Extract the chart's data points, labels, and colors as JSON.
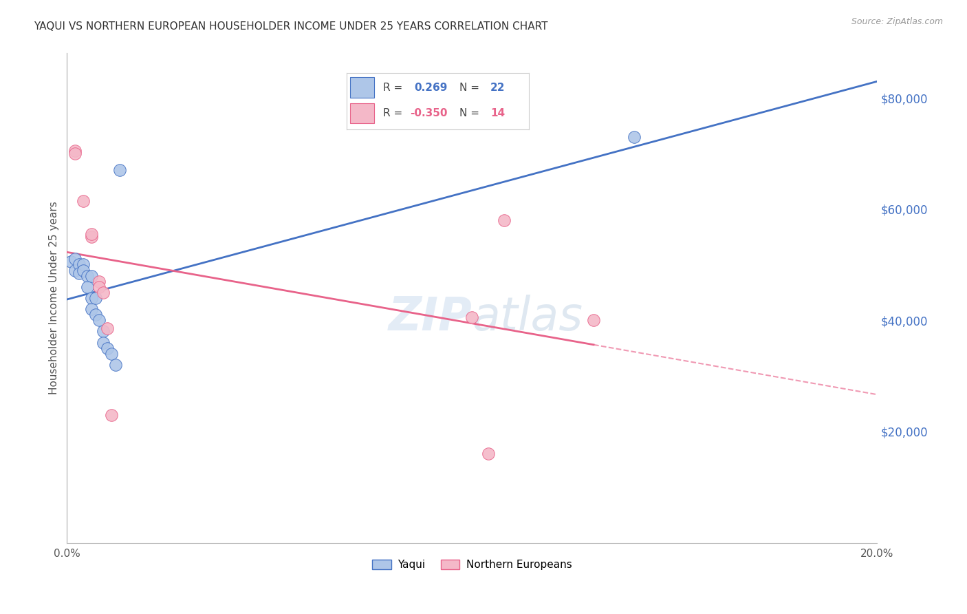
{
  "title": "YAQUI VS NORTHERN EUROPEAN HOUSEHOLDER INCOME UNDER 25 YEARS CORRELATION CHART",
  "source": "Source: ZipAtlas.com",
  "ylabel": "Householder Income Under 25 years",
  "y_tick_labels": [
    "$80,000",
    "$60,000",
    "$40,000",
    "$20,000"
  ],
  "y_tick_values": [
    80000,
    60000,
    40000,
    20000
  ],
  "ylim": [
    0,
    88000
  ],
  "xlim": [
    0.0,
    0.2
  ],
  "watermark_zip": "ZIP",
  "watermark_atlas": "atlas",
  "yaqui_color": "#aec6e8",
  "yaqui_line_color": "#4472c4",
  "ne_color": "#f4b8c8",
  "ne_line_color": "#e8638a",
  "yaqui_points": [
    [
      0.001,
      50500
    ],
    [
      0.002,
      51000
    ],
    [
      0.002,
      49000
    ],
    [
      0.003,
      50000
    ],
    [
      0.003,
      48500
    ],
    [
      0.004,
      50000
    ],
    [
      0.004,
      49000
    ],
    [
      0.005,
      48000
    ],
    [
      0.005,
      46000
    ],
    [
      0.006,
      48000
    ],
    [
      0.006,
      44000
    ],
    [
      0.006,
      42000
    ],
    [
      0.007,
      44000
    ],
    [
      0.007,
      41000
    ],
    [
      0.008,
      40000
    ],
    [
      0.009,
      38000
    ],
    [
      0.009,
      36000
    ],
    [
      0.01,
      35000
    ],
    [
      0.011,
      34000
    ],
    [
      0.012,
      32000
    ],
    [
      0.013,
      67000
    ],
    [
      0.14,
      73000
    ]
  ],
  "ne_points": [
    [
      0.002,
      70500
    ],
    [
      0.002,
      70000
    ],
    [
      0.004,
      61500
    ],
    [
      0.006,
      55000
    ],
    [
      0.006,
      55500
    ],
    [
      0.008,
      47000
    ],
    [
      0.008,
      46000
    ],
    [
      0.009,
      45000
    ],
    [
      0.01,
      38500
    ],
    [
      0.011,
      23000
    ],
    [
      0.108,
      58000
    ],
    [
      0.13,
      40000
    ],
    [
      0.1,
      40500
    ],
    [
      0.104,
      16000
    ]
  ],
  "yaqui_R": 0.269,
  "yaqui_N": 22,
  "ne_R": -0.35,
  "ne_N": 14,
  "background_color": "#ffffff",
  "grid_color": "#d0d0d0"
}
